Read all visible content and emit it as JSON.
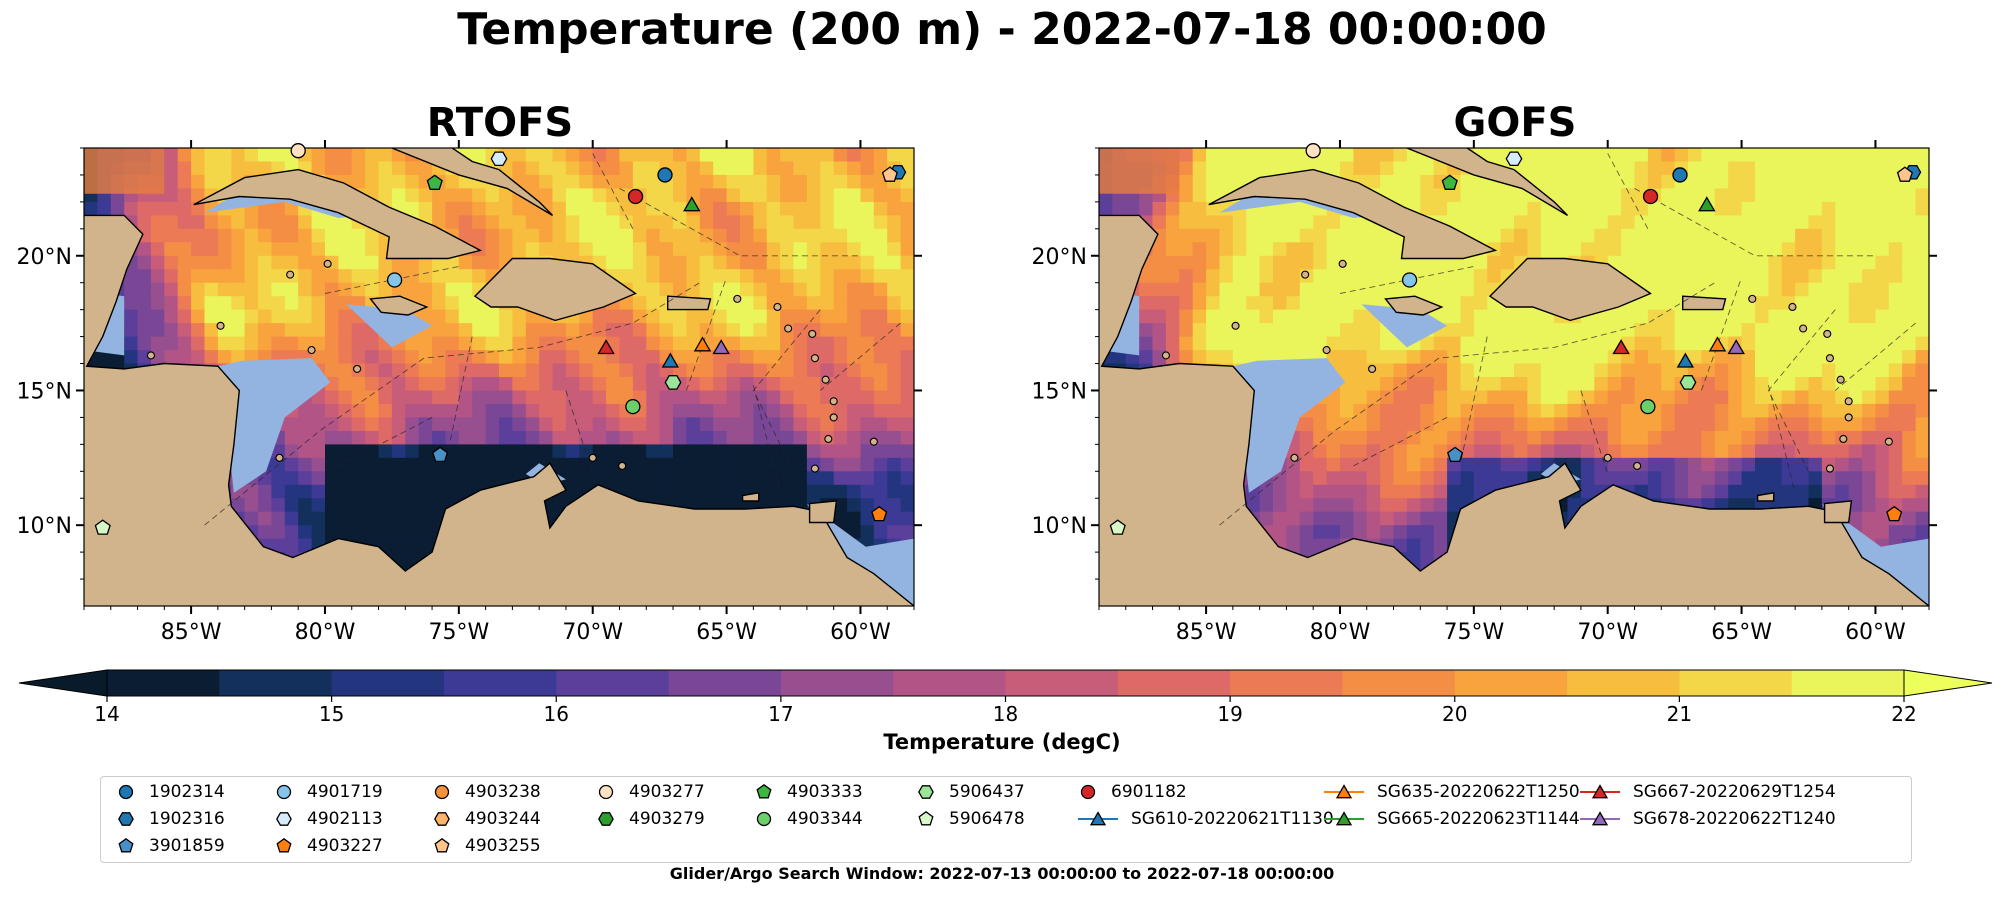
{
  "title": "Temperature (200 m) - 2022-07-18 00:00:00",
  "panels": [
    {
      "title": "RTOFS"
    },
    {
      "title": "GOFS"
    }
  ],
  "axes": {
    "lat_ticks": [
      "20°N",
      "15°N",
      "10°N"
    ],
    "lon_ticks": [
      "85°W",
      "80°W",
      "75°W",
      "70°W",
      "65°W",
      "60°W"
    ],
    "lon_range": [
      -89,
      -58
    ],
    "lat_range": [
      7,
      24
    ]
  },
  "colorbar": {
    "label": "Temperature (degC)",
    "ticks": [
      "14",
      "15",
      "16",
      "17",
      "18",
      "19",
      "20",
      "21",
      "22"
    ],
    "range": [
      14,
      22
    ],
    "colors": [
      "#0b1d33",
      "#13305c",
      "#24357f",
      "#3d3a96",
      "#5b3f9a",
      "#7a4797",
      "#974f8f",
      "#b25486",
      "#c85d79",
      "#dd6a66",
      "#ec7a55",
      "#f48e45",
      "#f8a33d",
      "#f7bd3f",
      "#f3d748",
      "#e9f55a"
    ],
    "extend": "both"
  },
  "land_color": "#d2b48c",
  "shelf_color": "#93b4e0",
  "legend": {
    "items": [
      {
        "label": "1902314",
        "marker": "circle",
        "color": "#1f77b4"
      },
      {
        "label": "1902316",
        "marker": "hexagon",
        "color": "#1f77b4"
      },
      {
        "label": "3901859",
        "marker": "pentagon",
        "color": "#4a90c8"
      },
      {
        "label": "4901719",
        "marker": "circle",
        "color": "#86c5ea"
      },
      {
        "label": "4902113",
        "marker": "hexagon",
        "color": "#d6ecfa"
      },
      {
        "label": "4903227",
        "marker": "pentagon",
        "color": "#ff7f0e"
      },
      {
        "label": "4903238",
        "marker": "circle",
        "color": "#f4913a"
      },
      {
        "label": "4903244",
        "marker": "hexagon",
        "color": "#ffb36b"
      },
      {
        "label": "4903255",
        "marker": "pentagon",
        "color": "#ffc58a"
      },
      {
        "label": "4903277",
        "marker": "circle",
        "color": "#ffe2c2"
      },
      {
        "label": "4903279",
        "marker": "hexagon",
        "color": "#2ca02c"
      },
      {
        "label": "4903333",
        "marker": "pentagon",
        "color": "#3db73d"
      },
      {
        "label": "4903344",
        "marker": "circle",
        "color": "#6bd06b"
      },
      {
        "label": "5906437",
        "marker": "hexagon",
        "color": "#9ae59a"
      },
      {
        "label": "5906478",
        "marker": "pentagon",
        "color": "#d8f8c8"
      },
      {
        "label": "6901182",
        "marker": "circle",
        "color": "#d62728"
      },
      {
        "label": "SG610-20220621T1130",
        "marker": "triangle-line",
        "color": "#1f77b4"
      },
      {
        "label": "SG635-20220622T1250",
        "marker": "triangle-line",
        "color": "#ff7f0e"
      },
      {
        "label": "SG665-20220623T1144",
        "marker": "triangle-line",
        "color": "#2ca02c"
      },
      {
        "label": "SG667-20220629T1254",
        "marker": "triangle-line",
        "color": "#d62728"
      },
      {
        "label": "SG678-20220622T1240",
        "marker": "triangle-line",
        "color": "#9467bd"
      }
    ]
  },
  "floats": [
    {
      "id": "1902314",
      "lon": -67.3,
      "lat": 23.0,
      "marker": "circle",
      "color": "#1f77b4"
    },
    {
      "id": "1902316",
      "lon": -58.6,
      "lat": 23.1,
      "marker": "hexagon",
      "color": "#1f77b4"
    },
    {
      "id": "3901859",
      "lon": -75.7,
      "lat": 12.6,
      "marker": "pentagon",
      "color": "#4a90c8"
    },
    {
      "id": "4901719",
      "lon": -77.4,
      "lat": 19.1,
      "marker": "circle",
      "color": "#86c5ea"
    },
    {
      "id": "4902113",
      "lon": -73.5,
      "lat": 23.6,
      "marker": "hexagon",
      "color": "#d6ecfa"
    },
    {
      "id": "4903227",
      "lon": -59.3,
      "lat": 10.4,
      "marker": "pentagon",
      "color": "#ff7f0e"
    },
    {
      "id": "4903255",
      "lon": -58.9,
      "lat": 23.0,
      "marker": "pentagon",
      "color": "#ffc58a"
    },
    {
      "id": "4903277",
      "lon": -81.0,
      "lat": 23.9,
      "marker": "circle",
      "color": "#ffe2c2"
    },
    {
      "id": "4903333",
      "lon": -75.9,
      "lat": 22.7,
      "marker": "pentagon",
      "color": "#3db73d"
    },
    {
      "id": "4903344",
      "lon": -68.5,
      "lat": 14.4,
      "marker": "circle",
      "color": "#6bd06b"
    },
    {
      "id": "5906437",
      "lon": -67.0,
      "lat": 15.3,
      "marker": "hexagon",
      "color": "#9ae59a"
    },
    {
      "id": "5906478",
      "lon": -88.3,
      "lat": 9.9,
      "marker": "pentagon",
      "color": "#d8f8c8"
    },
    {
      "id": "6901182",
      "lon": -68.4,
      "lat": 22.2,
      "marker": "circle",
      "color": "#d62728"
    },
    {
      "id": "SG610-20220621T1130",
      "lon": -67.1,
      "lat": 16.1,
      "marker": "triangle",
      "color": "#1f77b4"
    },
    {
      "id": "SG635-20220622T1250",
      "lon": -65.9,
      "lat": 16.7,
      "marker": "triangle",
      "color": "#ff7f0e"
    },
    {
      "id": "SG665-20220623T1144",
      "lon": -66.3,
      "lat": 21.9,
      "marker": "triangle",
      "color": "#2ca02c"
    },
    {
      "id": "SG667-20220629T1254",
      "lon": -69.5,
      "lat": 16.6,
      "marker": "triangle",
      "color": "#d62728"
    },
    {
      "id": "SG678-20220622T1240",
      "lon": -65.2,
      "lat": 16.6,
      "marker": "triangle",
      "color": "#9467bd"
    }
  ],
  "search_window": "Glider/Argo Search Window: 2022-07-13 00:00:00 to 2022-07-18 00:00:00"
}
